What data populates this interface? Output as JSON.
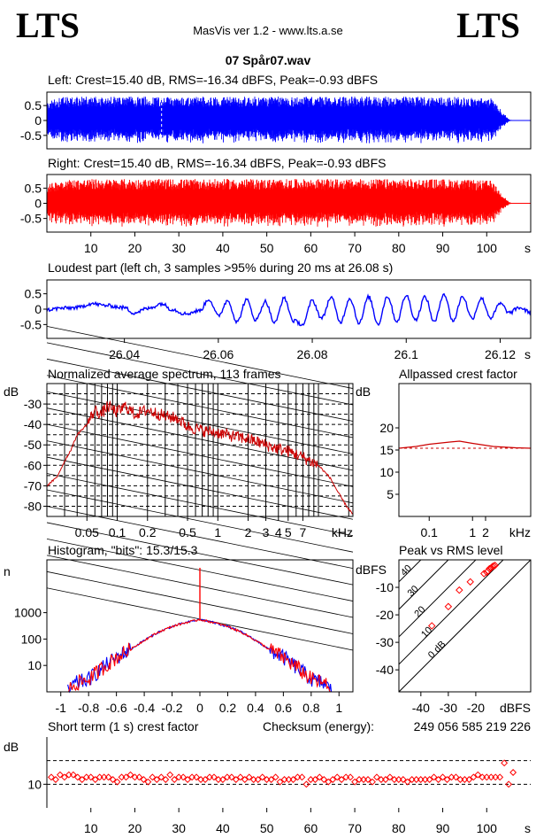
{
  "header": {
    "logo_left": "LTS",
    "logo_right": "LTS",
    "app_title": "MasVis ver 1.2 - www.lts.a.se",
    "file_name": "07 Spår07.wav"
  },
  "chart_data": [
    {
      "id": "left",
      "type": "line",
      "title": "Left: Crest=15.40 dB, RMS=-16.34 dBFS, Peak=-0.93 dBFS",
      "color": "#0000ff",
      "ylim": [
        -0.95,
        0.95
      ],
      "ytick_labels": [
        "0.5",
        "0",
        "-0.5"
      ],
      "ytick_values": [
        0.5,
        0,
        -0.5
      ],
      "xlim": [
        0,
        110
      ],
      "marker_line_at_s": 26.08,
      "envelope": [
        {
          "t": 0,
          "a": 0.6
        },
        {
          "t": 3,
          "a": 0.78
        },
        {
          "t": 10,
          "a": 0.8
        },
        {
          "t": 50,
          "a": 0.8
        },
        {
          "t": 90,
          "a": 0.8
        },
        {
          "t": 101,
          "a": 0.75
        },
        {
          "t": 103,
          "a": 0.4
        },
        {
          "t": 105,
          "a": 0.05
        },
        {
          "t": 106,
          "a": 0
        }
      ]
    },
    {
      "id": "right",
      "type": "line",
      "title": "Right: Crest=15.40 dB, RMS=-16.34 dBFS, Peak=-0.93 dBFS",
      "color": "#ff0000",
      "ylim": [
        -0.95,
        0.95
      ],
      "ytick_labels": [
        "0.5",
        "0",
        "-0.5"
      ],
      "ytick_values": [
        0.5,
        0,
        -0.5
      ],
      "xlim": [
        0,
        110
      ],
      "xtick_labels": [
        "10",
        "20",
        "30",
        "40",
        "50",
        "60",
        "70",
        "80",
        "90",
        "100"
      ],
      "xtick_values": [
        10,
        20,
        30,
        40,
        50,
        60,
        70,
        80,
        90,
        100
      ],
      "x_unit": "s",
      "envelope": [
        {
          "t": 0,
          "a": 0.6
        },
        {
          "t": 3,
          "a": 0.78
        },
        {
          "t": 10,
          "a": 0.8
        },
        {
          "t": 50,
          "a": 0.8
        },
        {
          "t": 90,
          "a": 0.8
        },
        {
          "t": 101,
          "a": 0.75
        },
        {
          "t": 103,
          "a": 0.4
        },
        {
          "t": 105,
          "a": 0.05
        },
        {
          "t": 106,
          "a": 0
        }
      ]
    },
    {
      "id": "loudest",
      "type": "line",
      "title": "Loudest part (left  ch, 3 samples >95% during 20 ms at 26.08 s)",
      "color": "#0000ff",
      "xlim": [
        26.0235,
        26.1265
      ],
      "ylim": [
        -0.95,
        0.95
      ],
      "ytick_labels": [
        "0.5",
        "0",
        "-0.5"
      ],
      "ytick_values": [
        0.5,
        0,
        -0.5
      ],
      "xtick_labels": [
        "26.04",
        "26.06",
        "26.08",
        "26.1",
        "26.12"
      ],
      "xtick_values": [
        26.04,
        26.06,
        26.08,
        26.1,
        26.12
      ],
      "x_unit": "s",
      "points": [
        [
          26.0235,
          -0.02
        ],
        [
          26.0265,
          0.03
        ],
        [
          26.03,
          0.05
        ],
        [
          26.033,
          0.18
        ],
        [
          26.036,
          0.12
        ],
        [
          26.04,
          0.05
        ],
        [
          26.042,
          -0.12
        ],
        [
          26.045,
          0.02
        ],
        [
          26.048,
          0.18
        ],
        [
          26.05,
          0.0
        ],
        [
          26.053,
          -0.15
        ],
        [
          26.056,
          -0.05
        ],
        [
          26.058,
          0.32
        ],
        [
          26.06,
          -0.22
        ],
        [
          26.062,
          0.28
        ],
        [
          26.064,
          -0.42
        ],
        [
          26.066,
          0.3
        ],
        [
          26.068,
          -0.35
        ],
        [
          26.07,
          0.25
        ],
        [
          26.072,
          -0.45
        ],
        [
          26.074,
          0.35
        ],
        [
          26.076,
          -0.38
        ],
        [
          26.078,
          -0.5
        ],
        [
          26.08,
          0.28
        ],
        [
          26.082,
          -0.3
        ],
        [
          26.084,
          0.38
        ],
        [
          26.086,
          -0.42
        ],
        [
          26.088,
          0.35
        ],
        [
          26.09,
          -0.45
        ],
        [
          26.092,
          0.4
        ],
        [
          26.094,
          -0.48
        ],
        [
          26.096,
          0.42
        ],
        [
          26.098,
          -0.4
        ],
        [
          26.1,
          0.45
        ],
        [
          26.102,
          -0.35
        ],
        [
          26.104,
          0.4
        ],
        [
          26.106,
          -0.42
        ],
        [
          26.108,
          0.5
        ],
        [
          26.11,
          -0.38
        ],
        [
          26.112,
          0.42
        ],
        [
          26.114,
          -0.3
        ],
        [
          26.116,
          0.35
        ],
        [
          26.118,
          -0.28
        ],
        [
          26.12,
          0.18
        ],
        [
          26.122,
          -0.12
        ],
        [
          26.124,
          0.05
        ],
        [
          26.1265,
          -0.1
        ]
      ]
    },
    {
      "id": "spectrum",
      "type": "line",
      "title": "Normalized average spectrum, 113 frames",
      "color": "#cc0000",
      "xscale": "log",
      "xlim": [
        0.02,
        22
      ],
      "ylim": [
        -85,
        -20
      ],
      "ylabel": "dB",
      "ytick_labels": [
        "-30",
        "-40",
        "-50",
        "-60",
        "-70",
        "-80"
      ],
      "ytick_values": [
        -30,
        -40,
        -50,
        -60,
        -70,
        -80
      ],
      "xtick_labels": [
        "0.05",
        "0.1",
        "0.2",
        "0.5",
        "1",
        "2",
        "3",
        "4",
        "5",
        "7"
      ],
      "xtick_values": [
        0.05,
        0.1,
        0.2,
        0.5,
        1,
        2,
        3,
        4,
        5,
        7
      ],
      "x_unit": "kHz",
      "points": [
        [
          0.02,
          -70
        ],
        [
          0.025,
          -66
        ],
        [
          0.03,
          -58
        ],
        [
          0.035,
          -52
        ],
        [
          0.04,
          -45
        ],
        [
          0.05,
          -40
        ],
        [
          0.06,
          -33
        ],
        [
          0.07,
          -35
        ],
        [
          0.08,
          -31
        ],
        [
          0.1,
          -34
        ],
        [
          0.12,
          -31
        ],
        [
          0.15,
          -35
        ],
        [
          0.2,
          -33
        ],
        [
          0.3,
          -36
        ],
        [
          0.4,
          -37
        ],
        [
          0.5,
          -41
        ],
        [
          0.7,
          -43
        ],
        [
          1,
          -44
        ],
        [
          1.5,
          -46
        ],
        [
          2,
          -47
        ],
        [
          3,
          -50
        ],
        [
          4,
          -52
        ],
        [
          5,
          -53
        ],
        [
          7,
          -56
        ],
        [
          10,
          -60
        ],
        [
          13,
          -66
        ],
        [
          16,
          -74
        ],
        [
          19,
          -80
        ],
        [
          22,
          -84
        ]
      ]
    },
    {
      "id": "allpassed-crest",
      "type": "line",
      "title": "Allpassed crest factor",
      "color": "#cc0000",
      "xscale": "log",
      "xlim": [
        0.02,
        22
      ],
      "ylim": [
        0,
        30
      ],
      "ylabel": "dB",
      "ytick_labels": [
        "20",
        "15",
        "10",
        "5"
      ],
      "ytick_values": [
        20,
        15,
        10,
        5
      ],
      "xtick_labels": [
        "0.1",
        "1",
        "2"
      ],
      "xtick_values": [
        0.1,
        1,
        2
      ],
      "x_unit": "kHz",
      "reference": 15.4,
      "points": [
        [
          0.02,
          15.4
        ],
        [
          0.05,
          15.8
        ],
        [
          0.1,
          16.3
        ],
        [
          0.3,
          16.8
        ],
        [
          0.5,
          17.0
        ],
        [
          1,
          16.5
        ],
        [
          3,
          15.8
        ],
        [
          10,
          15.5
        ],
        [
          22,
          15.4
        ]
      ]
    },
    {
      "id": "histogram",
      "type": "line",
      "title": "Histogram, \"bits\": 15.3/15.3",
      "colors": [
        "#0000ff",
        "#ff0000"
      ],
      "yscale": "log",
      "ylim": [
        1,
        100000
      ],
      "ylabel": "n",
      "ytick_labels": [
        "1000",
        "100",
        "10"
      ],
      "ytick_values": [
        1000,
        100,
        10
      ],
      "xlim": [
        -1.1,
        1.1
      ],
      "xtick_labels": [
        "-1",
        "-0.8",
        "-0.6",
        "-0.4",
        "-0.2",
        "0",
        "0.2",
        "0.4",
        "0.6",
        "0.8",
        "1"
      ],
      "xtick_values": [
        -1,
        -0.8,
        -0.6,
        -0.4,
        -0.2,
        0,
        0.2,
        0.4,
        0.6,
        0.8,
        1
      ],
      "peak_at_zero": 50000,
      "points": [
        [
          -0.95,
          1
        ],
        [
          -0.9,
          2
        ],
        [
          -0.8,
          3
        ],
        [
          -0.7,
          8
        ],
        [
          -0.6,
          20
        ],
        [
          -0.5,
          40
        ],
        [
          -0.4,
          90
        ],
        [
          -0.3,
          180
        ],
        [
          -0.2,
          300
        ],
        [
          -0.1,
          420
        ],
        [
          0,
          550
        ],
        [
          0.1,
          420
        ],
        [
          0.2,
          300
        ],
        [
          0.3,
          180
        ],
        [
          0.4,
          90
        ],
        [
          0.5,
          40
        ],
        [
          0.6,
          20
        ],
        [
          0.7,
          8
        ],
        [
          0.8,
          3
        ],
        [
          0.9,
          2
        ],
        [
          0.95,
          1
        ]
      ]
    },
    {
      "id": "peak-vs-rms",
      "type": "scatter",
      "title": "Peak vs RMS level",
      "color": "#ff0000",
      "xlim": [
        -48,
        0
      ],
      "ylim": [
        -48,
        0
      ],
      "ylabel": "dBFS",
      "xlabel": "dBFS",
      "ytick_labels": [
        "-10",
        "-20",
        "-30",
        "-40"
      ],
      "ytick_values": [
        -10,
        -20,
        -30,
        -40
      ],
      "xtick_labels": [
        "-40",
        "-30",
        "-20"
      ],
      "xtick_values": [
        -40,
        -30,
        -20
      ],
      "diagonal_labels": [
        "40",
        "30",
        "20",
        "10",
        "0 dB"
      ],
      "diagonal_offsets": [
        40,
        30,
        20,
        10,
        0
      ],
      "points": [
        [
          -36,
          -24
        ],
        [
          -30,
          -17
        ],
        [
          -26,
          -11
        ],
        [
          -22,
          -8
        ],
        [
          -17,
          -5
        ],
        [
          -16,
          -4.5
        ],
        [
          -15.5,
          -4
        ],
        [
          -15,
          -3.2
        ],
        [
          -14.5,
          -3
        ],
        [
          -14,
          -2.5
        ],
        [
          -13.5,
          -2.2
        ],
        [
          -13,
          -2
        ]
      ]
    },
    {
      "id": "short-term-crest",
      "type": "scatter",
      "title": "Short term (1 s) crest factor",
      "checksum_label": "Checksum (energy):",
      "checksum_value": "249 056 585 219 226",
      "color": "#ff0000",
      "ylabel": "dB",
      "ylim": [
        0,
        30
      ],
      "ytick_labels": [
        "10"
      ],
      "ytick_values": [
        10
      ],
      "dashed_levels": [
        10,
        20
      ],
      "xlim": [
        0,
        110
      ],
      "xtick_labels": [
        "10",
        "20",
        "30",
        "40",
        "50",
        "60",
        "70",
        "80",
        "90",
        "100"
      ],
      "xtick_values": [
        10,
        20,
        30,
        40,
        50,
        60,
        70,
        80,
        90,
        100
      ],
      "x_unit": "s",
      "points": [
        [
          1,
          13
        ],
        [
          2,
          12
        ],
        [
          3,
          14
        ],
        [
          4,
          13
        ],
        [
          5,
          14
        ],
        [
          6,
          14
        ],
        [
          7,
          13
        ],
        [
          8,
          12
        ],
        [
          9,
          13
        ],
        [
          10,
          13
        ],
        [
          11,
          12
        ],
        [
          12,
          13
        ],
        [
          13,
          13
        ],
        [
          14,
          13
        ],
        [
          15,
          12
        ],
        [
          16,
          11
        ],
        [
          17,
          13
        ],
        [
          18,
          13
        ],
        [
          19,
          14
        ],
        [
          20,
          13
        ],
        [
          21,
          13
        ],
        [
          22,
          12
        ],
        [
          23,
          11
        ],
        [
          24,
          13
        ],
        [
          25,
          12
        ],
        [
          26,
          13
        ],
        [
          27,
          12
        ],
        [
          28,
          14
        ],
        [
          29,
          12
        ],
        [
          30,
          13
        ],
        [
          31,
          13
        ],
        [
          32,
          12
        ],
        [
          33,
          13
        ],
        [
          34,
          13
        ],
        [
          35,
          12
        ],
        [
          36,
          12
        ],
        [
          37,
          13
        ],
        [
          38,
          13
        ],
        [
          39,
          12
        ],
        [
          40,
          12
        ],
        [
          41,
          13
        ],
        [
          42,
          13
        ],
        [
          43,
          12
        ],
        [
          44,
          13
        ],
        [
          45,
          12
        ],
        [
          46,
          13
        ],
        [
          47,
          12
        ],
        [
          48,
          12
        ],
        [
          49,
          13
        ],
        [
          50,
          12
        ],
        [
          51,
          12
        ],
        [
          52,
          13
        ],
        [
          53,
          11
        ],
        [
          54,
          12
        ],
        [
          55,
          12
        ],
        [
          56,
          12
        ],
        [
          57,
          13
        ],
        [
          58,
          13
        ],
        [
          59,
          10
        ],
        [
          60,
          12
        ],
        [
          61,
          12
        ],
        [
          62,
          13
        ],
        [
          63,
          12
        ],
        [
          64,
          11
        ],
        [
          65,
          12
        ],
        [
          66,
          13
        ],
        [
          67,
          12
        ],
        [
          68,
          13
        ],
        [
          69,
          13
        ],
        [
          70,
          11
        ],
        [
          71,
          12
        ],
        [
          72,
          12
        ],
        [
          73,
          12
        ],
        [
          74,
          11
        ],
        [
          75,
          13
        ],
        [
          76,
          12
        ],
        [
          77,
          12
        ],
        [
          78,
          13
        ],
        [
          79,
          12
        ],
        [
          80,
          12
        ],
        [
          81,
          12
        ],
        [
          82,
          11
        ],
        [
          83,
          12
        ],
        [
          84,
          12
        ],
        [
          85,
          12
        ],
        [
          86,
          12
        ],
        [
          87,
          12
        ],
        [
          88,
          13
        ],
        [
          89,
          12
        ],
        [
          90,
          13
        ],
        [
          91,
          12
        ],
        [
          92,
          13
        ],
        [
          93,
          13
        ],
        [
          94,
          12
        ],
        [
          95,
          12
        ],
        [
          96,
          12
        ],
        [
          97,
          13
        ],
        [
          98,
          14
        ],
        [
          99,
          13
        ],
        [
          100,
          13
        ],
        [
          101,
          13
        ],
        [
          102,
          13
        ],
        [
          103,
          13
        ],
        [
          104,
          19
        ],
        [
          105,
          10
        ],
        [
          106,
          15
        ]
      ]
    }
  ]
}
